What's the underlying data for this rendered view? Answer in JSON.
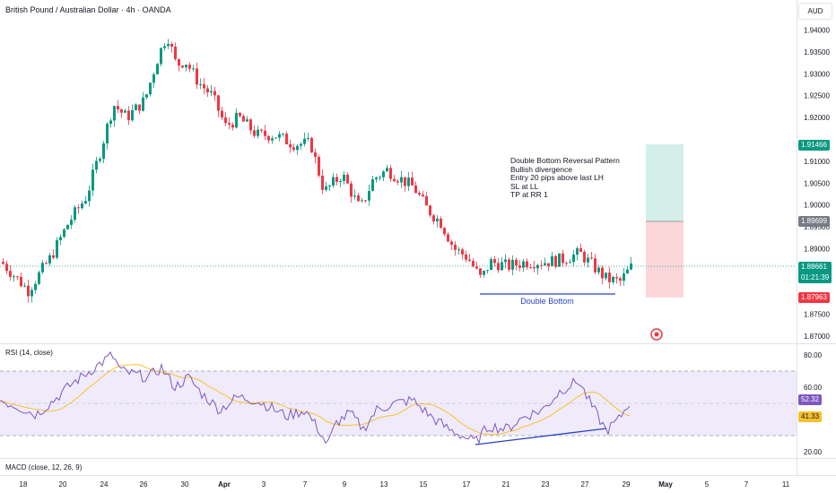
{
  "header": {
    "title": "British Pound / Australian Dollar · 4h · OANDA",
    "currency_button": "AUD"
  },
  "main_chart": {
    "y_ticks": [
      "1.94000",
      "1.93500",
      "1.93000",
      "1.92500",
      "1.92000",
      "1.91000",
      "1.90500",
      "1.90000",
      "1.89500",
      "1.89000",
      "1.87500",
      "1.87000"
    ],
    "y_range": [
      1.869,
      1.944
    ],
    "current_price": "1.88661",
    "countdown": "01:21:39",
    "take_profit_price": "1.91466",
    "entry_price": "1.89699",
    "stop_loss_price": "1.87963",
    "annotation_lines": [
      "Double Bottom Reversal Pattern",
      "Bullish divergence",
      "Entry 20 pips above last LH",
      "SL at LL",
      "TP at RR 1"
    ],
    "double_bottom_label": "Double Bottom",
    "colors": {
      "up": "#089981",
      "down": "#f23645",
      "tp_zone": "#d4efe9",
      "sl_zone": "#fbd7da",
      "trendline": "#2b44c4"
    }
  },
  "rsi_panel": {
    "title": "RSI (14, close)",
    "y_ticks": [
      "80.00",
      "60.00",
      "20.00"
    ],
    "rsi_value": "52.32",
    "ma_value": "41.33",
    "upper_band": 70,
    "lower_band": 30,
    "colors": {
      "rsi": "#7e57c2",
      "ma": "#f7c12d",
      "band_fill": "#f0ebfb"
    }
  },
  "macd_panel": {
    "title": "MACD (close, 12, 26, 9)"
  },
  "x_axis": {
    "labels": [
      "18",
      "20",
      "24",
      "26",
      "30",
      "Apr",
      "3",
      "7",
      "9",
      "13",
      "15",
      "17",
      "21",
      "23",
      "27",
      "29",
      "May",
      "5",
      "7",
      "11"
    ]
  }
}
